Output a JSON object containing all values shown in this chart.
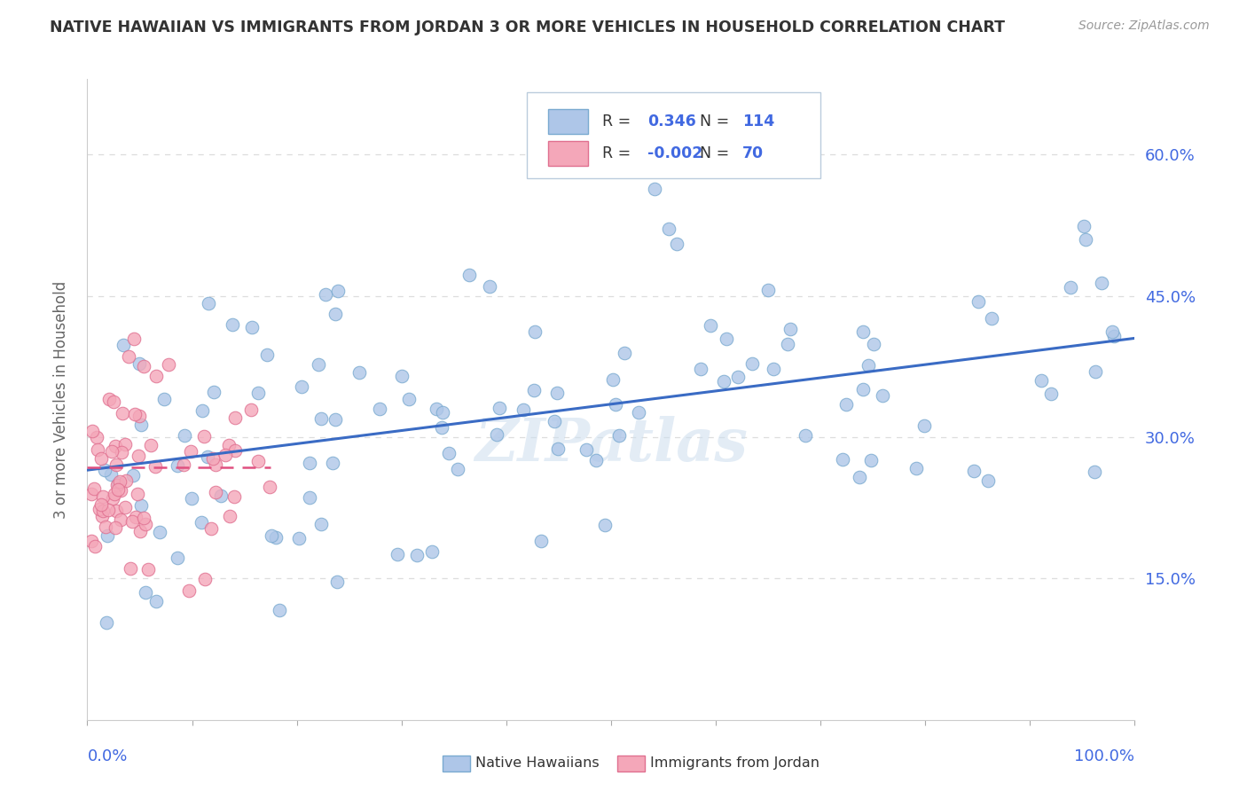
{
  "title": "NATIVE HAWAIIAN VS IMMIGRANTS FROM JORDAN 3 OR MORE VEHICLES IN HOUSEHOLD CORRELATION CHART",
  "source": "Source: ZipAtlas.com",
  "ylabel": "3 or more Vehicles in Household",
  "yaxis_labels": [
    "15.0%",
    "30.0%",
    "45.0%",
    "60.0%"
  ],
  "yticks": [
    0.15,
    0.3,
    0.45,
    0.6
  ],
  "r_blue": 0.346,
  "n_blue": 114,
  "r_pink": -0.002,
  "n_pink": 70,
  "watermark": "ZIPatlas",
  "xlim": [
    0.0,
    1.0
  ],
  "ylim": [
    0.0,
    0.68
  ],
  "blue_trend_x": [
    0.0,
    1.0
  ],
  "blue_trend_y": [
    0.265,
    0.405
  ],
  "pink_trend_x": [
    0.0,
    1.0
  ],
  "pink_trend_y": [
    0.268,
    0.268
  ],
  "blue_color": "#AEC6E8",
  "blue_edge_color": "#7AAAD0",
  "pink_color": "#F4A7B9",
  "pink_edge_color": "#E07090",
  "trend_blue_color": "#3A6BC4",
  "trend_pink_color": "#E05080",
  "title_color": "#333333",
  "axis_label_color": "#4169E1",
  "legend_r_color": "#4169E1",
  "background_color": "#FFFFFF",
  "grid_color": "#DDDDDD",
  "seed": 77
}
